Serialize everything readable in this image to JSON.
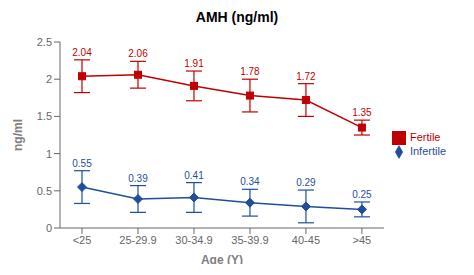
{
  "chart_data": {
    "type": "line",
    "title": "AMH (ng/ml)",
    "xlabel": "Age (Y)",
    "ylabel": "ng/ml",
    "categories": [
      "<25",
      "25-29.9",
      "30-34.9",
      "35-39.9",
      "40-45",
      ">45"
    ],
    "series": [
      {
        "name": "Infertile",
        "color": "#1f4e9c",
        "marker": "diamond",
        "values": [
          0.55,
          0.39,
          0.41,
          0.34,
          0.29,
          0.25
        ],
        "errors": [
          0.22,
          0.18,
          0.2,
          0.18,
          0.22,
          0.1
        ]
      },
      {
        "name": "Fertile",
        "color": "#c00000",
        "marker": "square",
        "values": [
          2.04,
          2.06,
          1.91,
          1.78,
          1.72,
          1.35
        ],
        "errors": [
          0.22,
          0.18,
          0.2,
          0.22,
          0.22,
          0.1
        ]
      }
    ],
    "ylim": [
      0,
      2.5
    ],
    "yticks": [
      0,
      0.5,
      1,
      1.5,
      2,
      2.5
    ],
    "grid": false,
    "legend": "right",
    "data_labels": true
  }
}
